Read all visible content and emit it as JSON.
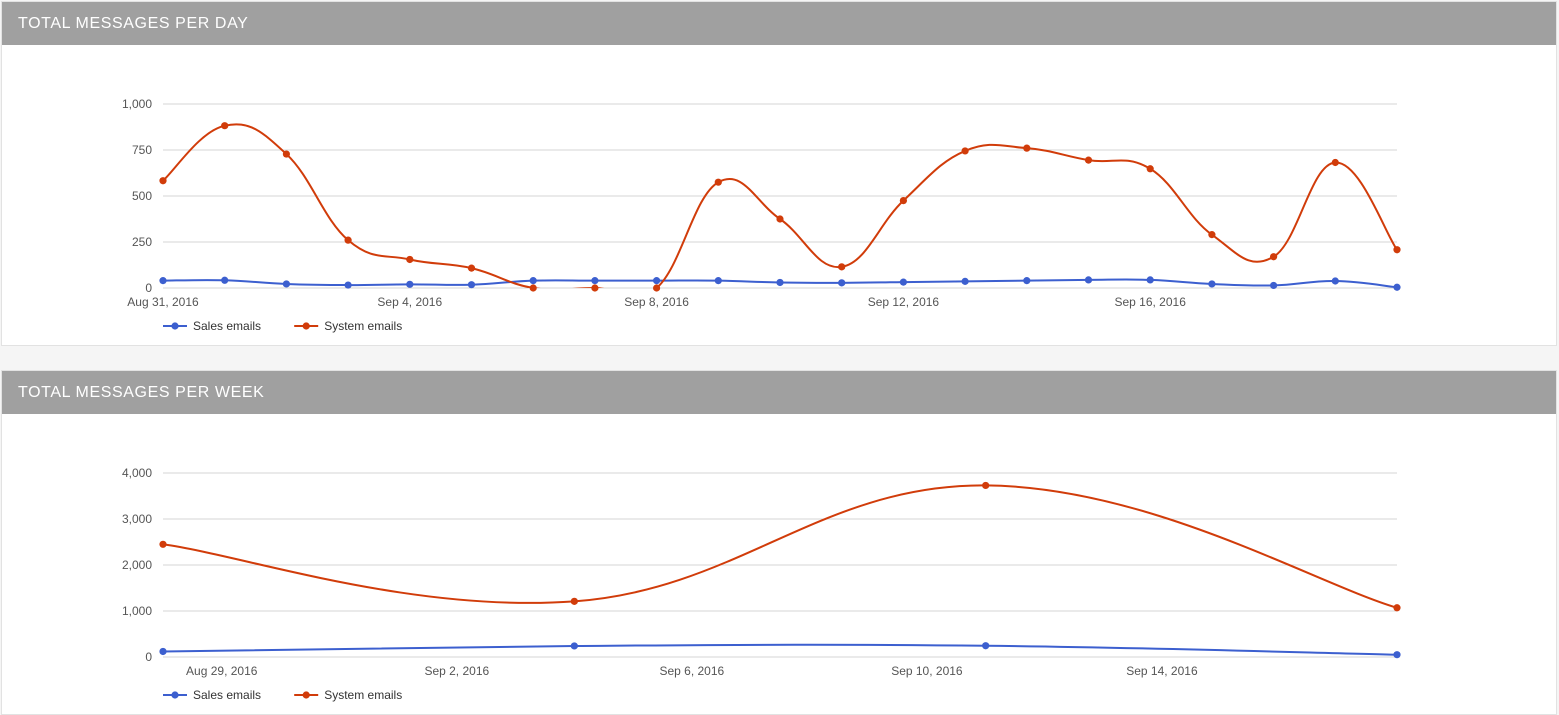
{
  "chart_data": [
    {
      "id": "day",
      "type": "line",
      "title": "TOTAL MESSAGES PER DAY",
      "xlabel": "",
      "ylabel": "",
      "ylim": [
        0,
        1000
      ],
      "yticks": [
        0,
        250,
        500,
        750,
        1000
      ],
      "ytick_labels": [
        "0",
        "250",
        "500",
        "750",
        "1,000"
      ],
      "x": [
        "Aug 31, 2016",
        "Sep 1, 2016",
        "Sep 2, 2016",
        "Sep 3, 2016",
        "Sep 4, 2016",
        "Sep 5, 2016",
        "Sep 6, 2016",
        "Sep 7, 2016",
        "Sep 8, 2016",
        "Sep 9, 2016",
        "Sep 10, 2016",
        "Sep 11, 2016",
        "Sep 12, 2016",
        "Sep 13, 2016",
        "Sep 14, 2016",
        "Sep 15, 2016",
        "Sep 16, 2016",
        "Sep 17, 2016",
        "Sep 18, 2016",
        "Sep 19, 2016",
        "Sep 20, 2016"
      ],
      "xtick_labels": [
        {
          "x": "Aug 31, 2016",
          "label": "Aug 31, 2016"
        },
        {
          "x": "Sep 4, 2016",
          "label": "Sep 4, 2016"
        },
        {
          "x": "Sep 8, 2016",
          "label": "Sep 8, 2016"
        },
        {
          "x": "Sep 12, 2016",
          "label": "Sep 12, 2016"
        },
        {
          "x": "Sep 16, 2016",
          "label": "Sep 16, 2016"
        }
      ],
      "legend_position": "bottom-left",
      "grid": true,
      "series": [
        {
          "name": "Sales emails",
          "color": "#3c5fcf",
          "values": [
            40,
            42,
            22,
            16,
            20,
            18,
            40,
            40,
            40,
            40,
            30,
            28,
            32,
            36,
            40,
            44,
            44,
            22,
            14,
            38,
            4
          ]
        },
        {
          "name": "System emails",
          "color": "#d13c0a",
          "values": [
            583,
            882,
            728,
            260,
            155,
            108,
            0,
            0,
            0,
            575,
            375,
            115,
            475,
            745,
            760,
            695,
            648,
            290,
            170,
            682,
            208
          ]
        }
      ]
    },
    {
      "id": "week",
      "type": "line",
      "title": "TOTAL MESSAGES PER WEEK",
      "xlabel": "",
      "ylabel": "",
      "ylim": [
        0,
        4000
      ],
      "yticks": [
        0,
        1000,
        2000,
        3000,
        4000
      ],
      "ytick_labels": [
        "0",
        "1,000",
        "2,000",
        "3,000",
        "4,000"
      ],
      "x": [
        "Aug 28, 2016",
        "Sep 4, 2016",
        "Sep 11, 2016",
        "Sep 18, 2016"
      ],
      "xtick_labels": [
        {
          "x": "Aug 29, 2016",
          "label": "Aug 29, 2016"
        },
        {
          "x": "Sep 2, 2016",
          "label": "Sep 2, 2016"
        },
        {
          "x": "Sep 6, 2016",
          "label": "Sep 6, 2016"
        },
        {
          "x": "Sep 10, 2016",
          "label": "Sep 10, 2016"
        },
        {
          "x": "Sep 14, 2016",
          "label": "Sep 14, 2016"
        }
      ],
      "legend_position": "bottom-left",
      "grid": true,
      "series": [
        {
          "name": "Sales emails",
          "color": "#3c5fcf",
          "values": [
            120,
            240,
            245,
            50
          ]
        },
        {
          "name": "System emails",
          "color": "#d13c0a",
          "values": [
            2450,
            1210,
            3730,
            1070
          ]
        }
      ]
    }
  ]
}
